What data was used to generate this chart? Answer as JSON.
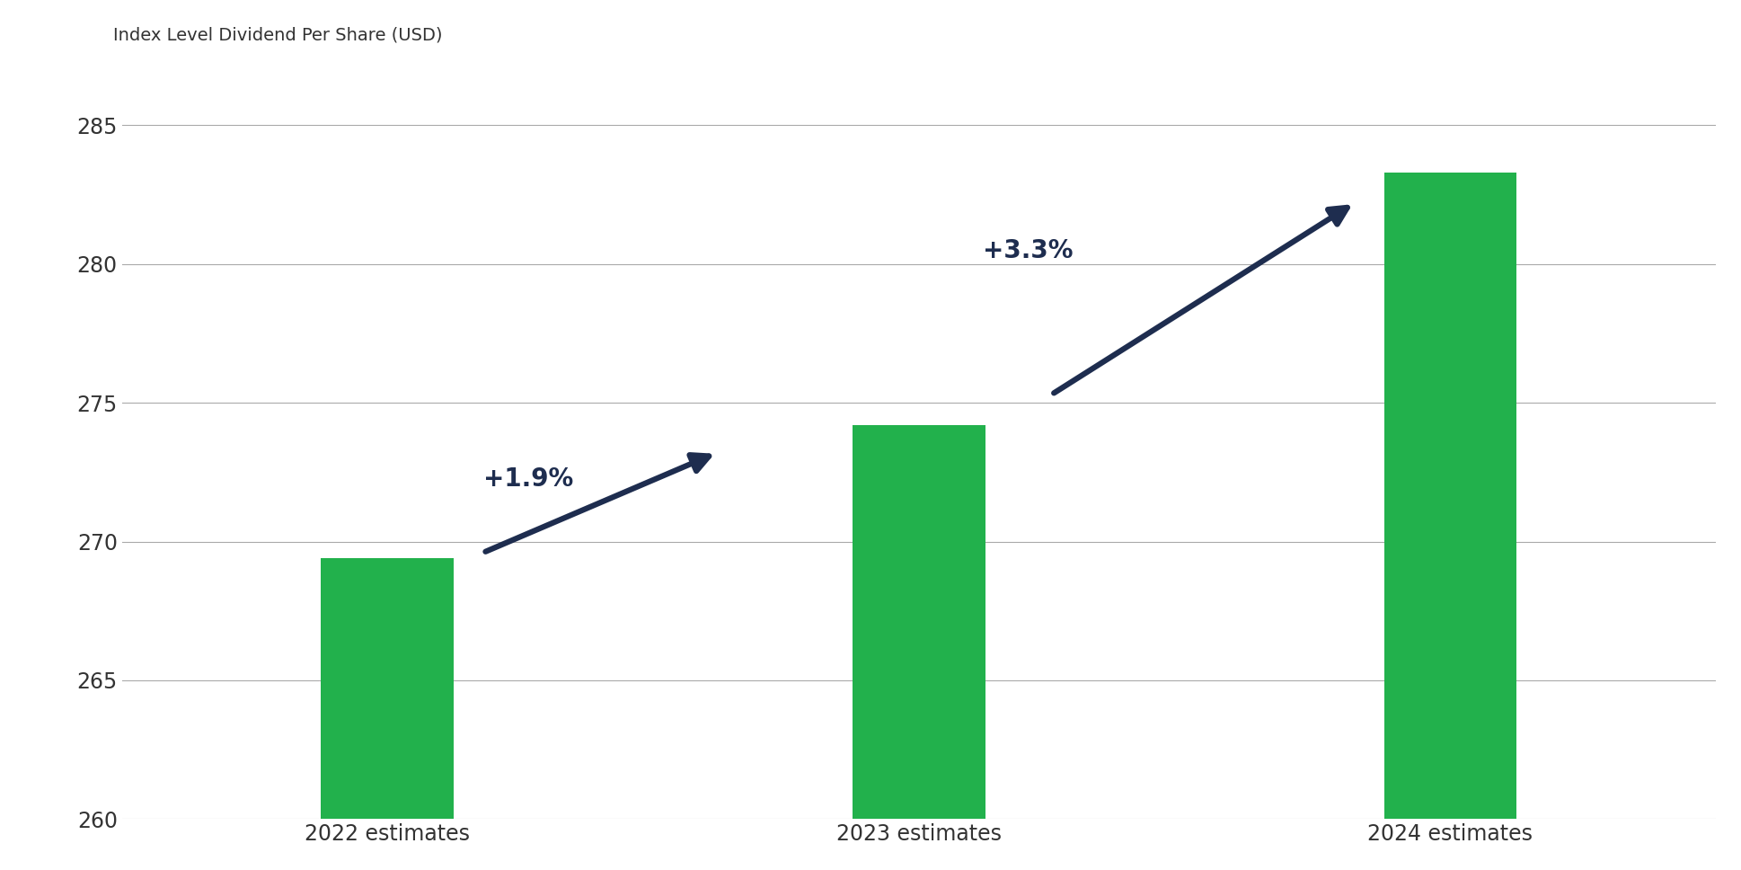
{
  "categories": [
    "2022 estimates",
    "2023 estimates",
    "2024 estimates"
  ],
  "values": [
    269.4,
    274.2,
    283.3
  ],
  "bar_color": "#22b14c",
  "top_label": "Index Level Dividend Per Share (USD)",
  "ylim": [
    260,
    287
  ],
  "yticks": [
    260,
    265,
    270,
    275,
    280,
    285
  ],
  "background_color": "#ffffff",
  "arrow1_label": "+1.9%",
  "arrow2_label": "+3.3%",
  "arrow_color": "#1e2d4f",
  "bar_width": 0.25,
  "grid_color": "#aaaaaa",
  "tick_color": "#333333",
  "tick_fontsize": 17,
  "label_fontsize": 14,
  "arrow_label_fontsize": 20
}
